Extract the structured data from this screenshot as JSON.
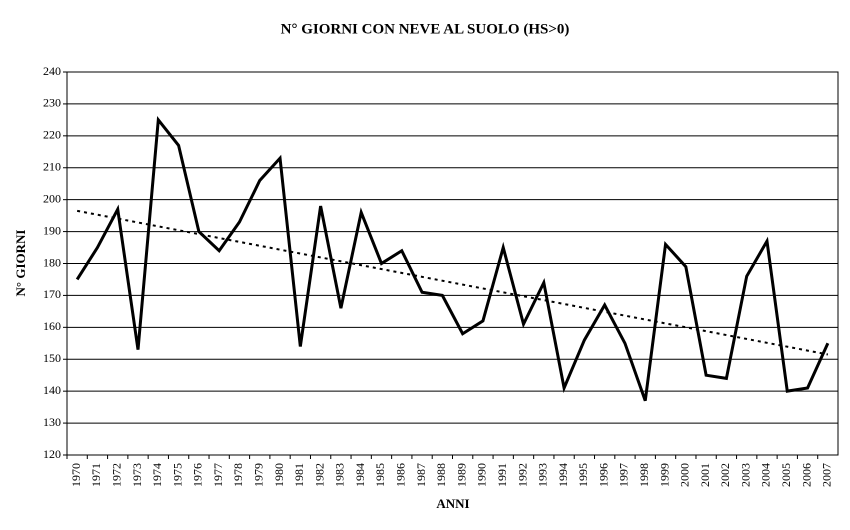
{
  "chart_data": {
    "type": "line",
    "title": "N° GIORNI CON NEVE AL SUOLO (HS>0)",
    "x_label": "ANNI",
    "y_label": "N° GIORNI",
    "categories": [
      "1970",
      "1971",
      "1972",
      "1973",
      "1974",
      "1975",
      "1976",
      "1977",
      "1978",
      "1979",
      "1980",
      "1981",
      "1982",
      "1983",
      "1984",
      "1985",
      "1986",
      "1987",
      "1988",
      "1989",
      "1990",
      "1991",
      "1992",
      "1993",
      "1994",
      "1995",
      "1996",
      "1997",
      "1998",
      "1999",
      "2000",
      "2001",
      "2002",
      "2003",
      "2004",
      "2005",
      "2006",
      "2007"
    ],
    "series": [
      {
        "color": "#000000",
        "values": [
          175,
          185,
          197,
          153,
          225,
          217,
          190,
          184,
          193,
          206,
          213,
          154,
          198,
          166,
          196,
          180,
          184,
          171,
          170,
          158,
          162,
          185,
          161,
          174,
          141,
          156,
          167,
          155,
          137,
          186,
          179,
          145,
          144,
          176,
          187,
          140,
          141,
          155
        ]
      }
    ],
    "trend": {
      "color": "#000000",
      "style": "dotted",
      "values": [
        196.5,
        151.5
      ]
    },
    "ylim": [
      120,
      240
    ],
    "yticks": [
      120,
      130,
      140,
      150,
      160,
      170,
      180,
      190,
      200,
      210,
      220,
      230,
      240
    ],
    "grid": true
  }
}
